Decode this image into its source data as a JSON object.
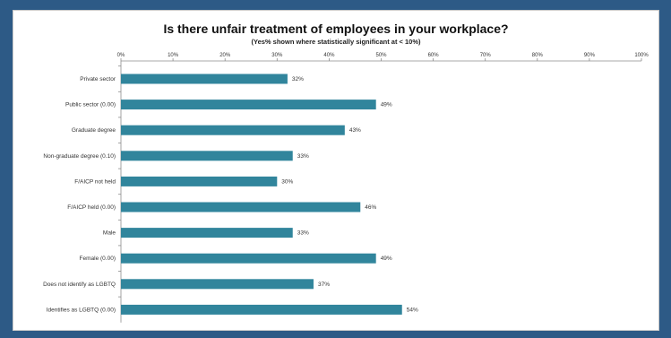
{
  "chart_data": {
    "type": "bar",
    "orientation": "horizontal",
    "title": "Is there unfair treatment of employees in your workplace?",
    "subtitle": "(Yes% shown where statistically significant at < 10%)",
    "categories": [
      "Private sector",
      "Public sector (0.00)",
      "Graduate degree",
      "Non-graduate degree (0.10)",
      "F/AICP not held",
      "F/AICP held (0.00)",
      "Male",
      "Female (0.00)",
      "Does not identify as LGBTQ",
      "Identifies as LGBTQ (0.00)"
    ],
    "values": [
      32,
      49,
      43,
      33,
      30,
      46,
      33,
      49,
      37,
      54
    ],
    "data_labels": [
      "32%",
      "49%",
      "43%",
      "33%",
      "30%",
      "46%",
      "33%",
      "49%",
      "37%",
      "54%"
    ],
    "xlim": [
      0,
      100
    ],
    "xticks": [
      "0%",
      "10%",
      "20%",
      "30%",
      "40%",
      "50%",
      "60%",
      "70%",
      "80%",
      "90%",
      "100%"
    ],
    "xaxis_position": "top",
    "grid": false,
    "bar_color": "#31859c"
  }
}
